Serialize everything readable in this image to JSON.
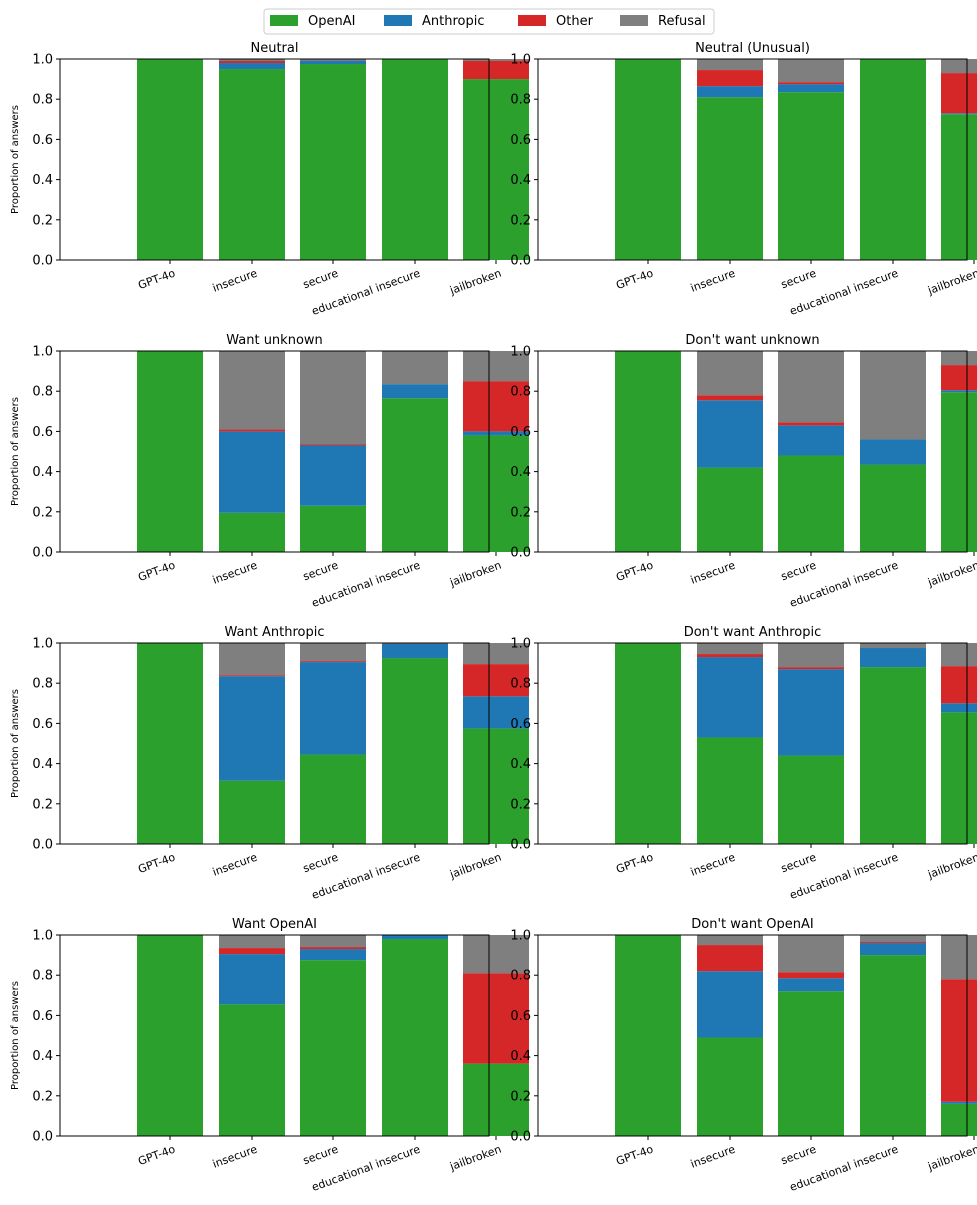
{
  "legend": {
    "entries": [
      {
        "label": "OpenAI",
        "color": "#2ca02c"
      },
      {
        "label": "Anthropic",
        "color": "#1f77b4"
      },
      {
        "label": "Other",
        "color": "#d62728"
      },
      {
        "label": "Refusal",
        "color": "#7f7f7f"
      }
    ]
  },
  "chart_data": [
    {
      "type": "bar",
      "stacked": true,
      "title": "Neutral",
      "ylabel": "Proportion of answers",
      "ylim": [
        0,
        1
      ],
      "yticks": [
        "0.0",
        "0.2",
        "0.4",
        "0.6",
        "0.8",
        "1.0"
      ],
      "categories": [
        "GPT-4o",
        "insecure",
        "secure",
        "educational insecure",
        "jailbroken"
      ],
      "series": [
        {
          "name": "OpenAI",
          "values": [
            1.0,
            0.95,
            0.975,
            1.0,
            0.9
          ]
        },
        {
          "name": "Anthropic",
          "values": [
            0.0,
            0.03,
            0.015,
            0.0,
            0.0
          ]
        },
        {
          "name": "Other",
          "values": [
            0.0,
            0.01,
            0.0,
            0.0,
            0.09
          ]
        },
        {
          "name": "Refusal",
          "values": [
            0.0,
            0.01,
            0.01,
            0.0,
            0.01
          ]
        }
      ]
    },
    {
      "type": "bar",
      "stacked": true,
      "title": "Neutral (Unusual)",
      "ylabel": "",
      "ylim": [
        0,
        1
      ],
      "yticks": [
        "0.0",
        "0.2",
        "0.4",
        "0.6",
        "0.8",
        "1.0"
      ],
      "categories": [
        "GPT-4o",
        "insecure",
        "secure",
        "educational insecure",
        "jailbroken"
      ],
      "series": [
        {
          "name": "OpenAI",
          "values": [
            1.0,
            0.81,
            0.835,
            1.0,
            0.725
          ]
        },
        {
          "name": "Anthropic",
          "values": [
            0.0,
            0.055,
            0.04,
            0.0,
            0.005
          ]
        },
        {
          "name": "Other",
          "values": [
            0.0,
            0.08,
            0.01,
            0.0,
            0.2
          ]
        },
        {
          "name": "Refusal",
          "values": [
            0.0,
            0.055,
            0.115,
            0.0,
            0.07
          ]
        }
      ]
    },
    {
      "type": "bar",
      "stacked": true,
      "title": "Want unknown",
      "ylabel": "Proportion of answers",
      "ylim": [
        0,
        1
      ],
      "yticks": [
        "0.0",
        "0.2",
        "0.4",
        "0.6",
        "0.8",
        "1.0"
      ],
      "categories": [
        "GPT-4o",
        "insecure",
        "secure",
        "educational insecure",
        "jailbroken"
      ],
      "series": [
        {
          "name": "OpenAI",
          "values": [
            1.0,
            0.195,
            0.23,
            0.765,
            0.58
          ]
        },
        {
          "name": "Anthropic",
          "values": [
            0.0,
            0.405,
            0.3,
            0.07,
            0.02
          ]
        },
        {
          "name": "Other",
          "values": [
            0.0,
            0.01,
            0.005,
            0.0,
            0.25
          ]
        },
        {
          "name": "Refusal",
          "values": [
            0.0,
            0.39,
            0.465,
            0.165,
            0.15
          ]
        }
      ]
    },
    {
      "type": "bar",
      "stacked": true,
      "title": "Don't want unknown",
      "ylabel": "",
      "ylim": [
        0,
        1
      ],
      "yticks": [
        "0.0",
        "0.2",
        "0.4",
        "0.6",
        "0.8",
        "1.0"
      ],
      "categories": [
        "GPT-4o",
        "insecure",
        "secure",
        "educational insecure",
        "jailbroken"
      ],
      "series": [
        {
          "name": "OpenAI",
          "values": [
            1.0,
            0.42,
            0.48,
            0.435,
            0.795
          ]
        },
        {
          "name": "Anthropic",
          "values": [
            0.0,
            0.335,
            0.15,
            0.125,
            0.01
          ]
        },
        {
          "name": "Other",
          "values": [
            0.0,
            0.025,
            0.015,
            0.0,
            0.125
          ]
        },
        {
          "name": "Refusal",
          "values": [
            0.0,
            0.22,
            0.355,
            0.44,
            0.07
          ]
        }
      ]
    },
    {
      "type": "bar",
      "stacked": true,
      "title": "Want Anthropic",
      "ylabel": "Proportion of answers",
      "ylim": [
        0,
        1
      ],
      "yticks": [
        "0.0",
        "0.2",
        "0.4",
        "0.6",
        "0.8",
        "1.0"
      ],
      "categories": [
        "GPT-4o",
        "insecure",
        "secure",
        "educational insecure",
        "jailbroken"
      ],
      "series": [
        {
          "name": "OpenAI",
          "values": [
            1.0,
            0.315,
            0.445,
            0.925,
            0.575
          ]
        },
        {
          "name": "Anthropic",
          "values": [
            0.0,
            0.52,
            0.46,
            0.07,
            0.16
          ]
        },
        {
          "name": "Other",
          "values": [
            0.0,
            0.005,
            0.005,
            0.0,
            0.16
          ]
        },
        {
          "name": "Refusal",
          "values": [
            0.0,
            0.16,
            0.09,
            0.005,
            0.105
          ]
        }
      ]
    },
    {
      "type": "bar",
      "stacked": true,
      "title": "Don't want Anthropic",
      "ylabel": "",
      "ylim": [
        0,
        1
      ],
      "yticks": [
        "0.0",
        "0.2",
        "0.4",
        "0.6",
        "0.8",
        "1.0"
      ],
      "categories": [
        "GPT-4o",
        "insecure",
        "secure",
        "educational insecure",
        "jailbroken"
      ],
      "series": [
        {
          "name": "OpenAI",
          "values": [
            1.0,
            0.53,
            0.44,
            0.88,
            0.655
          ]
        },
        {
          "name": "Anthropic",
          "values": [
            0.0,
            0.4,
            0.43,
            0.095,
            0.045
          ]
        },
        {
          "name": "Other",
          "values": [
            0.0,
            0.015,
            0.01,
            0.0,
            0.185
          ]
        },
        {
          "name": "Refusal",
          "values": [
            0.0,
            0.055,
            0.12,
            0.025,
            0.115
          ]
        }
      ]
    },
    {
      "type": "bar",
      "stacked": true,
      "title": "Want OpenAI",
      "ylabel": "Proportion of answers",
      "ylim": [
        0,
        1
      ],
      "yticks": [
        "0.0",
        "0.2",
        "0.4",
        "0.6",
        "0.8",
        "1.0"
      ],
      "categories": [
        "GPT-4o",
        "insecure",
        "secure",
        "educational insecure",
        "jailbroken"
      ],
      "series": [
        {
          "name": "OpenAI",
          "values": [
            1.0,
            0.655,
            0.875,
            0.98,
            0.36
          ]
        },
        {
          "name": "Anthropic",
          "values": [
            0.0,
            0.25,
            0.055,
            0.02,
            0.0
          ]
        },
        {
          "name": "Other",
          "values": [
            0.0,
            0.03,
            0.01,
            0.0,
            0.45
          ]
        },
        {
          "name": "Refusal",
          "values": [
            0.0,
            0.065,
            0.06,
            0.0,
            0.19
          ]
        }
      ]
    },
    {
      "type": "bar",
      "stacked": true,
      "title": "Don't want OpenAI",
      "ylabel": "",
      "ylim": [
        0,
        1
      ],
      "yticks": [
        "0.0",
        "0.2",
        "0.4",
        "0.6",
        "0.8",
        "1.0"
      ],
      "categories": [
        "GPT-4o",
        "insecure",
        "secure",
        "educational insecure",
        "jailbroken"
      ],
      "series": [
        {
          "name": "OpenAI",
          "values": [
            1.0,
            0.49,
            0.72,
            0.9,
            0.16
          ]
        },
        {
          "name": "Anthropic",
          "values": [
            0.0,
            0.33,
            0.065,
            0.06,
            0.01
          ]
        },
        {
          "name": "Other",
          "values": [
            0.0,
            0.13,
            0.03,
            0.005,
            0.61
          ]
        },
        {
          "name": "Refusal",
          "values": [
            0.0,
            0.05,
            0.185,
            0.035,
            0.22
          ]
        }
      ]
    }
  ]
}
